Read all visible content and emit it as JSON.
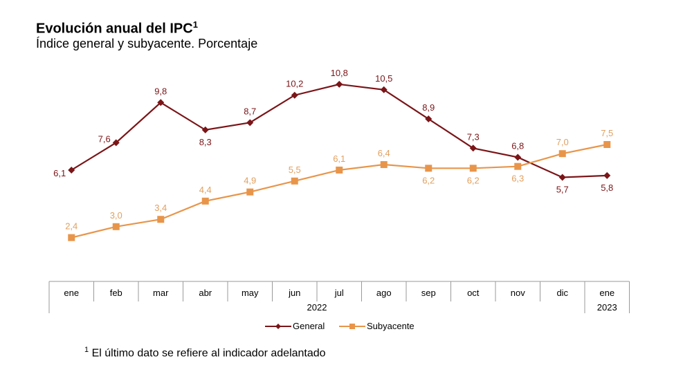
{
  "title": "Evolución anual del IPC",
  "title_sup": "1",
  "subtitle": "Índice general y subyacente. Porcentaje",
  "footnote_sup": "1",
  "footnote": "El último dato se refiere al indicador adelantado",
  "chart_data": {
    "type": "line",
    "categories": [
      "ene",
      "feb",
      "mar",
      "abr",
      "may",
      "jun",
      "jul",
      "ago",
      "sep",
      "oct",
      "nov",
      "dic",
      "ene"
    ],
    "year_groups": [
      {
        "label": "2022",
        "span": 12
      },
      {
        "label": "2023",
        "span": 1
      }
    ],
    "series": [
      {
        "name": "General",
        "color": "#7A1518",
        "marker": "diamond",
        "values": [
          6.1,
          7.6,
          9.8,
          8.3,
          8.7,
          10.2,
          10.8,
          10.5,
          8.9,
          7.3,
          6.8,
          5.7,
          5.8
        ],
        "labels": [
          "6,1",
          "7,6",
          "9,8",
          "8,3",
          "8,7",
          "10,2",
          "10,8",
          "10,5",
          "8,9",
          "7,3",
          "6,8",
          "5,7",
          "5,8"
        ]
      },
      {
        "name": "Subyacente",
        "color": "#E8954A",
        "marker": "square",
        "values": [
          2.4,
          3.0,
          3.4,
          4.4,
          4.9,
          5.5,
          6.1,
          6.4,
          6.2,
          6.2,
          6.3,
          7.0,
          7.5
        ],
        "labels": [
          "2,4",
          "3,0",
          "3,4",
          "4,4",
          "4,9",
          "5,5",
          "6,1",
          "6,4",
          "6,2",
          "6,2",
          "6,3",
          "7,0",
          "7,5"
        ]
      }
    ],
    "ylim": [
      0,
      12
    ],
    "grid": false,
    "legend": "bottom"
  }
}
